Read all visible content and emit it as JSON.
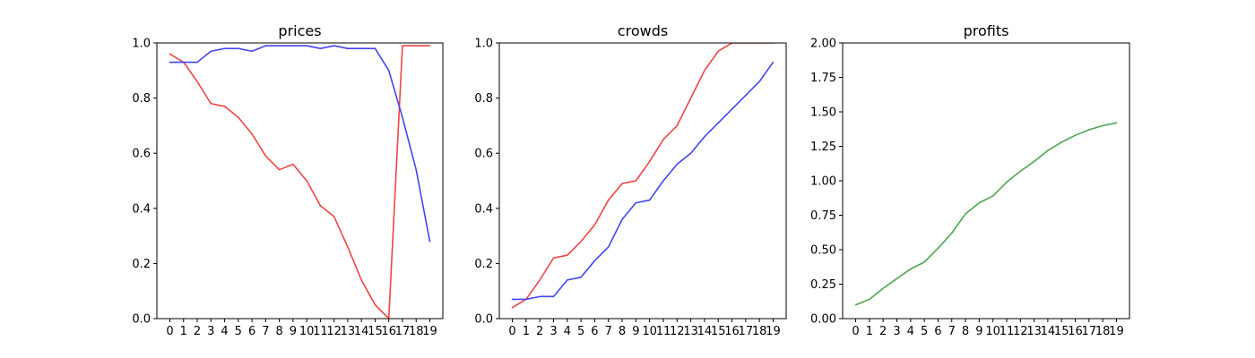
{
  "chart_data": [
    {
      "type": "line",
      "title": "prices",
      "x": [
        0,
        1,
        2,
        3,
        4,
        5,
        6,
        7,
        8,
        9,
        10,
        11,
        12,
        13,
        14,
        15,
        16,
        17,
        18,
        19
      ],
      "xticks": [
        "0",
        "1",
        "2",
        "3",
        "4",
        "5",
        "6",
        "7",
        "8",
        "9",
        "10",
        "11",
        "12",
        "13",
        "14",
        "15",
        "16",
        "17",
        "18",
        "19"
      ],
      "ylim": [
        0,
        1.0
      ],
      "yticks": [
        "0.0",
        "0.2",
        "0.4",
        "0.6",
        "0.8",
        "1.0"
      ],
      "grid": false,
      "series": [
        {
          "color": "#ef4444",
          "values": [
            0.96,
            0.93,
            0.86,
            0.78,
            0.77,
            0.73,
            0.67,
            0.59,
            0.54,
            0.56,
            0.5,
            0.41,
            0.37,
            0.26,
            0.14,
            0.05,
            0.0,
            0.99,
            0.99,
            0.99
          ]
        },
        {
          "color": "#4444ef",
          "values": [
            0.93,
            0.93,
            0.93,
            0.97,
            0.98,
            0.98,
            0.97,
            0.99,
            0.99,
            0.99,
            0.99,
            0.98,
            0.99,
            0.98,
            0.98,
            0.98,
            0.9,
            0.73,
            0.54,
            0.28
          ]
        }
      ]
    },
    {
      "type": "line",
      "title": "crowds",
      "x": [
        0,
        1,
        2,
        3,
        4,
        5,
        6,
        7,
        8,
        9,
        10,
        11,
        12,
        13,
        14,
        15,
        16,
        17,
        18,
        19
      ],
      "xticks": [
        "0",
        "1",
        "2",
        "3",
        "4",
        "5",
        "6",
        "7",
        "8",
        "9",
        "10",
        "11",
        "12",
        "13",
        "14",
        "15",
        "16",
        "17",
        "18",
        "19"
      ],
      "ylim": [
        0,
        1.0
      ],
      "yticks": [
        "0.0",
        "0.2",
        "0.4",
        "0.6",
        "0.8",
        "1.0"
      ],
      "grid": false,
      "series": [
        {
          "color": "#ef4444",
          "values": [
            0.04,
            0.07,
            0.14,
            0.22,
            0.23,
            0.28,
            0.34,
            0.43,
            0.49,
            0.5,
            0.57,
            0.65,
            0.7,
            0.8,
            0.9,
            0.97,
            1.0,
            1.0,
            1.0,
            1.0
          ]
        },
        {
          "color": "#4444ef",
          "values": [
            0.07,
            0.07,
            0.08,
            0.08,
            0.14,
            0.15,
            0.21,
            0.26,
            0.36,
            0.42,
            0.43,
            0.5,
            0.56,
            0.6,
            0.66,
            0.71,
            0.76,
            0.81,
            0.86,
            0.93
          ]
        }
      ]
    },
    {
      "type": "line",
      "title": "profits",
      "x": [
        0,
        1,
        2,
        3,
        4,
        5,
        6,
        7,
        8,
        9,
        10,
        11,
        12,
        13,
        14,
        15,
        16,
        17,
        18,
        19
      ],
      "xticks": [
        "0",
        "1",
        "2",
        "3",
        "4",
        "5",
        "6",
        "7",
        "8",
        "9",
        "10",
        "11",
        "12",
        "13",
        "14",
        "15",
        "16",
        "17",
        "18",
        "19"
      ],
      "ylim": [
        0,
        2.0
      ],
      "yticks": [
        "0.00",
        "0.25",
        "0.50",
        "0.75",
        "1.00",
        "1.25",
        "1.50",
        "1.75",
        "2.00"
      ],
      "grid": false,
      "series": [
        {
          "color": "#4ca64c",
          "values": [
            0.1,
            0.14,
            0.22,
            0.29,
            0.36,
            0.41,
            0.51,
            0.62,
            0.76,
            0.84,
            0.89,
            0.99,
            1.07,
            1.14,
            1.22,
            1.28,
            1.33,
            1.37,
            1.4,
            1.42
          ]
        }
      ]
    }
  ]
}
